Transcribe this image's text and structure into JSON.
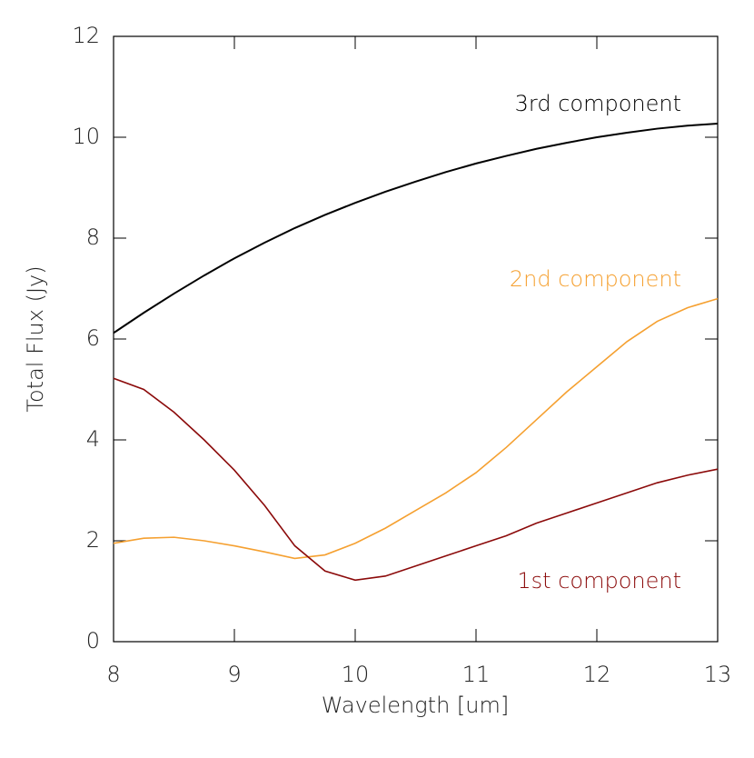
{
  "chart_data": {
    "type": "line",
    "xlabel": "Wavelength [um]",
    "ylabel": "Total Flux (Jy)",
    "x": [
      8,
      8.25,
      8.5,
      8.75,
      9,
      9.25,
      9.5,
      9.75,
      10,
      10.25,
      10.5,
      10.75,
      11,
      11.25,
      11.5,
      11.75,
      12,
      12.25,
      12.5,
      12.75,
      13
    ],
    "series": [
      {
        "name": "3rd component",
        "color": "#000000",
        "values": [
          6.12,
          6.52,
          6.9,
          7.26,
          7.6,
          7.91,
          8.2,
          8.46,
          8.7,
          8.92,
          9.12,
          9.31,
          9.48,
          9.63,
          9.77,
          9.89,
          10.0,
          10.09,
          10.17,
          10.23,
          10.27
        ]
      },
      {
        "name": "2nd component",
        "color": "#f5a030",
        "values": [
          1.95,
          2.05,
          2.07,
          2.0,
          1.9,
          1.78,
          1.65,
          1.72,
          1.95,
          2.25,
          2.6,
          2.95,
          3.35,
          3.85,
          4.4,
          4.95,
          5.45,
          5.95,
          6.35,
          6.62,
          6.8
        ]
      },
      {
        "name": "1st component",
        "color": "#8b0a0a",
        "values": [
          5.22,
          5.0,
          4.55,
          4.0,
          3.4,
          2.7,
          1.9,
          1.4,
          1.22,
          1.3,
          1.5,
          1.7,
          1.9,
          2.1,
          2.35,
          2.55,
          2.75,
          2.95,
          3.15,
          3.3,
          3.42
        ]
      }
    ],
    "xlim": [
      8,
      13
    ],
    "ylim": [
      0,
      12
    ],
    "xticks": [
      8,
      9,
      10,
      11,
      12,
      13
    ],
    "yticks": [
      0,
      2,
      4,
      6,
      8,
      10,
      12
    ]
  }
}
